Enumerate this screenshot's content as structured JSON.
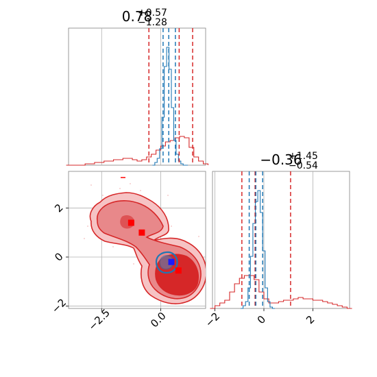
{
  "chart_data": [
    {
      "type": "histogram",
      "panel": "top-left",
      "title": {
        "base": "0.78",
        "sup": "+0.57",
        "sub": "−1.28"
      },
      "xlim": [
        -3.9,
        1.9
      ],
      "ylim": [
        0,
        1
      ],
      "grid": true,
      "tick_labels": [],
      "series": [
        {
          "color": "#d62728",
          "x": [
            -3.9,
            -3.7,
            -3.5,
            -3.3,
            -3.1,
            -2.9,
            -2.7,
            -2.5,
            -2.3,
            -2.1,
            -1.9,
            -1.7,
            -1.5,
            -1.3,
            -1.1,
            -0.9,
            -0.7,
            -0.5,
            -0.3,
            -0.1,
            0.1,
            0.3,
            0.5,
            0.7,
            0.9,
            1.1,
            1.3,
            1.5,
            1.7,
            1.9
          ],
          "values": [
            0,
            0,
            0,
            0,
            0.01,
            0.01,
            0.02,
            0.02,
            0.03,
            0.03,
            0.04,
            0.04,
            0.05,
            0.05,
            0.04,
            0.03,
            0.04,
            0.06,
            0.08,
            0.11,
            0.14,
            0.17,
            0.18,
            0.2,
            0.21,
            0.2,
            0.13,
            0.06,
            0.03,
            0.01
          ]
        },
        {
          "color": "#1f77b4",
          "x": [
            -0.3,
            -0.2,
            -0.1,
            0,
            0.1,
            0.2,
            0.3,
            0.4,
            0.5,
            0.6,
            0.7,
            0.8,
            0.9,
            1,
            1.1
          ],
          "values": [
            0,
            0.02,
            0.05,
            0.12,
            0.35,
            0.72,
            0.86,
            0.7,
            0.42,
            0.18,
            0.08,
            0.03,
            0.01,
            0,
            0
          ]
        }
      ],
      "quantile_lines": [
        {
          "color": "#d62728",
          "x": [
            -0.5,
            0.78,
            1.35
          ]
        },
        {
          "color": "#1f77b4",
          "x": [
            0.1,
            0.34,
            0.62
          ]
        }
      ]
    },
    {
      "type": "contour",
      "panel": "bottom-left",
      "xlim": [
        -3.9,
        1.9
      ],
      "ylim": [
        -2.1,
        3.5
      ],
      "grid": true,
      "xticks": [
        -2.5,
        0.0
      ],
      "xtick_labels": [
        "−2.5",
        "0.0"
      ],
      "yticks": [
        -2,
        0,
        2
      ],
      "ytick_labels": [
        "−2",
        "0",
        "2"
      ],
      "red_markers": [
        [
          -1.25,
          1.4
        ],
        [
          -0.8,
          1.0
        ],
        [
          0.75,
          -0.55
        ]
      ],
      "blue_marker": [
        0.45,
        -0.2
      ],
      "colors": {
        "red_dark": "#d62728",
        "red_mid": "#e8888a",
        "red_light": "#f6c3c4",
        "blue": "#1f77b4",
        "marker_blue": "#1a1aff"
      }
    },
    {
      "type": "histogram",
      "panel": "bottom-right",
      "title": {
        "base": "−0.36",
        "sup": "+1.45",
        "sub": "−0.54"
      },
      "xlim": [
        -2.1,
        3.5
      ],
      "ylim": [
        0,
        1
      ],
      "grid": true,
      "xticks": [
        -2,
        0,
        2
      ],
      "xtick_labels": [
        "−2",
        "0",
        "2"
      ],
      "series": [
        {
          "color": "#d62728",
          "x": [
            -2.1,
            -1.9,
            -1.7,
            -1.5,
            -1.3,
            -1.1,
            -0.9,
            -0.7,
            -0.5,
            -0.3,
            -0.1,
            0.1,
            0.3,
            0.5,
            0.7,
            0.9,
            1.1,
            1.3,
            1.5,
            1.7,
            1.9,
            2.1,
            2.3,
            2.5,
            2.7,
            2.9,
            3.1,
            3.3,
            3.5
          ],
          "values": [
            0,
            0.02,
            0.04,
            0.06,
            0.12,
            0.18,
            0.22,
            0.24,
            0.24,
            0.21,
            0.12,
            0.07,
            0.04,
            0.04,
            0.05,
            0.06,
            0.06,
            0.07,
            0.08,
            0.07,
            0.07,
            0.06,
            0.06,
            0.05,
            0.04,
            0.03,
            0.02,
            0.01,
            0
          ]
        },
        {
          "color": "#1f77b4",
          "x": [
            -0.9,
            -0.8,
            -0.7,
            -0.6,
            -0.5,
            -0.4,
            -0.3,
            -0.2,
            -0.1,
            0,
            0.1,
            0.2,
            0.3,
            0.4
          ],
          "values": [
            0,
            0.02,
            0.05,
            0.15,
            0.38,
            0.62,
            0.78,
            0.86,
            0.7,
            0.42,
            0.15,
            0.05,
            0.01,
            0
          ]
        }
      ],
      "quantile_lines": [
        {
          "color": "#d62728",
          "x": [
            -0.9,
            -0.36,
            1.09
          ]
        },
        {
          "color": "#1f77b4",
          "x": [
            -0.6,
            -0.33,
            -0.05
          ]
        }
      ]
    }
  ]
}
